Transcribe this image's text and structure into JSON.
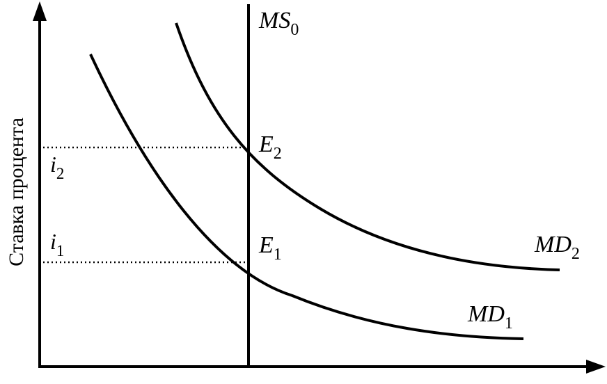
{
  "y_axis_label": "Ставка процента",
  "supply_curve": {
    "name": "MS",
    "sub": "0"
  },
  "demand_curves": [
    {
      "name": "MD",
      "sub": "1"
    },
    {
      "name": "MD",
      "sub": "2"
    }
  ],
  "equilibria": [
    {
      "name": "E",
      "sub": "1"
    },
    {
      "name": "E",
      "sub": "2"
    }
  ],
  "rates": [
    {
      "name": "i",
      "sub": "1"
    },
    {
      "name": "i",
      "sub": "2"
    }
  ],
  "colors": {
    "line": "#000000",
    "background": "#ffffff"
  }
}
